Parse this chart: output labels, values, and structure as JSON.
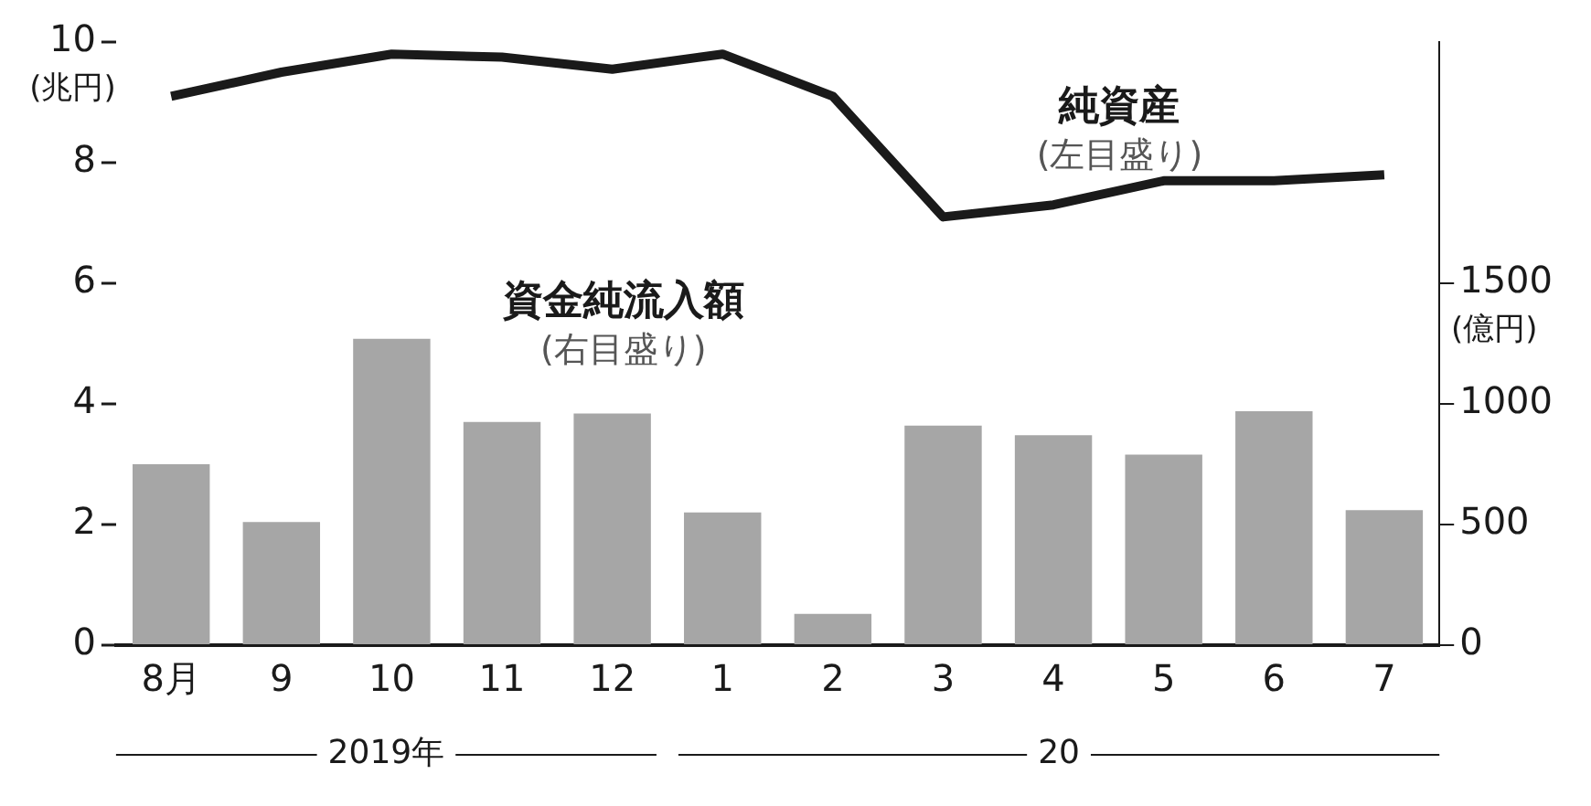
{
  "chart_data": {
    "type": "bar",
    "ylabel": "(兆円)",
    "y2label": "(億円)",
    "categories": [
      "8月",
      "9",
      "10",
      "11",
      "12",
      "1",
      "2",
      "3",
      "4",
      "5",
      "6",
      "7"
    ],
    "series": [
      {
        "name": "純資産",
        "type": "line",
        "color": "#1a1a1a",
        "values": [
          9.1,
          9.5,
          9.8,
          9.75,
          9.55,
          9.8,
          9.1,
          7.1,
          7.3,
          7.7,
          7.7,
          7.8
        ]
      },
      {
        "name": "資金純流入額",
        "axis": "y2",
        "color": "#a6a6a6",
        "values": [
          750,
          510,
          1270,
          925,
          960,
          550,
          130,
          910,
          870,
          790,
          970,
          560
        ]
      }
    ],
    "ylim": [
      0,
      10
    ],
    "yticks": [
      0,
      2,
      4,
      6,
      8,
      10
    ],
    "y2lim": [
      0,
      2500
    ],
    "y2ticks": [
      0,
      500,
      1000,
      1500
    ],
    "annotations": [
      "(左目盛り)",
      "(右目盛り)",
      "2019年",
      "20"
    ],
    "legend": false,
    "marker": "none",
    "line_style": "solid"
  }
}
